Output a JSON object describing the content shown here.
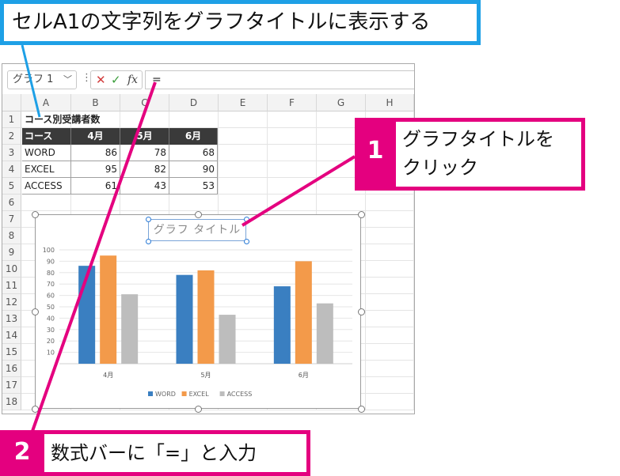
{
  "callout_top": {
    "text": "セルA1の文字列をグラフタイトルに表示する"
  },
  "callout_1": {
    "number": "1",
    "text_line1": "グラフタイトルを",
    "text_line2": "クリック"
  },
  "callout_2": {
    "number": "2",
    "text": "数式バーに「=」と入力"
  },
  "formula_bar": {
    "name_box": "グラフ 1",
    "cancel": "✕",
    "enter": "✓",
    "fx": "fx",
    "value": "="
  },
  "columns": [
    "A",
    "B",
    "C",
    "D",
    "E",
    "F",
    "G",
    "H"
  ],
  "rows": [
    "1",
    "2",
    "3",
    "4",
    "5",
    "6",
    "7",
    "8",
    "9",
    "10",
    "11",
    "12",
    "13",
    "14",
    "15",
    "16",
    "17",
    "18"
  ],
  "sheet": {
    "a1": "コース別受講者数",
    "header": [
      "コース",
      "4月",
      "5月",
      "6月"
    ],
    "data": [
      [
        "WORD",
        "86",
        "78",
        "68"
      ],
      [
        "EXCEL",
        "95",
        "82",
        "90"
      ],
      [
        "ACCESS",
        "61",
        "43",
        "53"
      ]
    ]
  },
  "chart_data": {
    "type": "bar",
    "title": "グラフ タイトル",
    "categories": [
      "4月",
      "5月",
      "6月"
    ],
    "series": [
      {
        "name": "WORD",
        "values": [
          86,
          78,
          68
        ],
        "color": "#3a7fc1"
      },
      {
        "name": "EXCEL",
        "values": [
          95,
          82,
          90
        ],
        "color": "#f39a4a"
      },
      {
        "name": "ACCESS",
        "values": [
          61,
          43,
          53
        ],
        "color": "#bdbdbd"
      }
    ],
    "ylim": [
      0,
      100
    ],
    "yticks": [
      "100",
      "90",
      "80",
      "70",
      "60",
      "50",
      "40",
      "30",
      "20",
      "10"
    ],
    "grid": true,
    "legend": "bottom"
  },
  "colors": {
    "accent_blue": "#1ea0e6",
    "accent_pink": "#e4007f"
  }
}
